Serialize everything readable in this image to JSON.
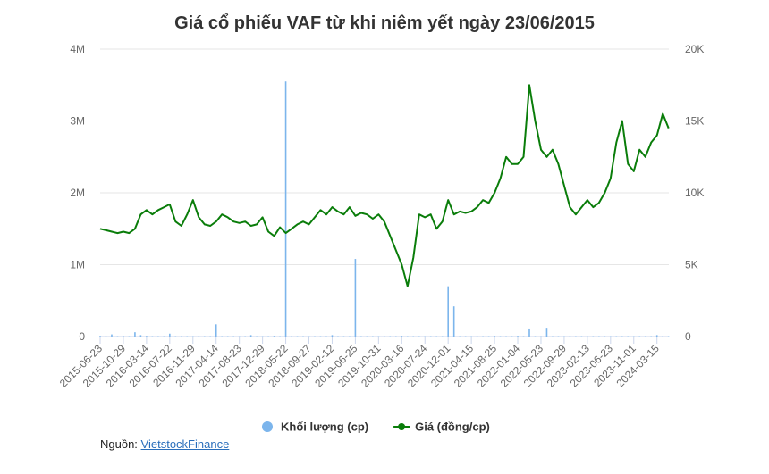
{
  "chart_data": {
    "type": "bar-line",
    "title": "Giá cổ phiếu VAF từ khi niêm yết ngày 23/06/2015",
    "categories": [
      "2015-06-23",
      null,
      null,
      null,
      "2015-10-29",
      null,
      null,
      null,
      "2016-03-14",
      null,
      null,
      null,
      "2016-07-22",
      null,
      null,
      null,
      "2016-11-29",
      null,
      null,
      null,
      "2017-04-14",
      null,
      null,
      null,
      "2017-08-23",
      null,
      null,
      null,
      "2017-12-29",
      null,
      null,
      null,
      "2018-05-22",
      null,
      null,
      null,
      "2018-09-27",
      null,
      null,
      null,
      "2019-02-12",
      null,
      null,
      null,
      "2019-06-25",
      null,
      null,
      null,
      "2019-10-31",
      null,
      null,
      null,
      "2020-03-16",
      null,
      null,
      null,
      "2020-07-24",
      null,
      null,
      null,
      "2020-12-01",
      null,
      null,
      null,
      "2021-04-15",
      null,
      null,
      null,
      "2021-08-25",
      null,
      null,
      null,
      "2022-01-04",
      null,
      null,
      null,
      "2022-05-23",
      null,
      null,
      null,
      "2022-09-29",
      null,
      null,
      null,
      "2023-02-13",
      null,
      null,
      null,
      "2023-06-23",
      null,
      null,
      null,
      "2023-11-01",
      null,
      null,
      null,
      "2024-03-15",
      null,
      null
    ],
    "series": [
      {
        "name": "Khối lượng (cp)",
        "color": "#7cb5ec",
        "type": "bar",
        "axis": "y",
        "values": [
          10000,
          5000,
          30000,
          5000,
          8000,
          5000,
          60000,
          20000,
          10000,
          5000,
          5000,
          5000,
          40000,
          5000,
          5000,
          5000,
          5000,
          5000,
          5000,
          5000,
          170000,
          5000,
          5000,
          5000,
          5000,
          5000,
          20000,
          5000,
          5000,
          5000,
          10000,
          5000,
          3550000,
          5000,
          5000,
          5000,
          5000,
          5000,
          5000,
          5000,
          20000,
          5000,
          5000,
          5000,
          1080000,
          5000,
          5000,
          5000,
          5000,
          5000,
          5000,
          5000,
          10000,
          5000,
          5000,
          5000,
          5000,
          5000,
          5000,
          5000,
          700000,
          420000,
          5000,
          5000,
          5000,
          5000,
          5000,
          5000,
          10000,
          5000,
          5000,
          5000,
          10000,
          5000,
          100000,
          5000,
          5000,
          110000,
          5000,
          5000,
          5000,
          5000,
          5000,
          5000,
          5000,
          5000,
          5000,
          5000,
          5000,
          5000,
          5000,
          5000,
          5000,
          5000,
          5000,
          5000,
          20000,
          5000,
          5000
        ]
      },
      {
        "name": "Giá (đồng/cp)",
        "color": "#0a7d0a",
        "type": "line",
        "axis": "y2",
        "values": [
          7500,
          7400,
          7300,
          7200,
          7300,
          7200,
          7500,
          8500,
          8800,
          8500,
          8800,
          9000,
          9200,
          8000,
          7700,
          8500,
          9500,
          8300,
          7800,
          7700,
          8000,
          8500,
          8300,
          8000,
          7900,
          8000,
          7700,
          7800,
          8300,
          7300,
          7000,
          7600,
          7200,
          7500,
          7800,
          8000,
          7800,
          8300,
          8800,
          8500,
          9000,
          8700,
          8500,
          9000,
          8400,
          8600,
          8500,
          8200,
          8500,
          8000,
          7000,
          6000,
          5000,
          3500,
          5500,
          8500,
          8300,
          8500,
          7500,
          8000,
          9500,
          8500,
          8700,
          8600,
          8700,
          9000,
          9500,
          9300,
          10000,
          11000,
          12500,
          12000,
          12000,
          12500,
          17500,
          15000,
          13000,
          12500,
          13000,
          12000,
          10500,
          9000,
          8500,
          9000,
          9500,
          9000,
          9300,
          10000,
          11000,
          13500,
          15000,
          12000,
          11500,
          13000,
          12500,
          13500,
          14000,
          15500,
          14500
        ]
      }
    ],
    "ylim": [
      0,
      4000000
    ],
    "yticks": [
      {
        "value": 0,
        "label": "0"
      },
      {
        "value": 1000000,
        "label": "1M"
      },
      {
        "value": 2000000,
        "label": "2M"
      },
      {
        "value": 3000000,
        "label": "3M"
      },
      {
        "value": 4000000,
        "label": "4M"
      }
    ],
    "y2lim": [
      0,
      20000
    ],
    "y2ticks": [
      {
        "value": 0,
        "label": "0"
      },
      {
        "value": 5000,
        "label": "5K"
      },
      {
        "value": 10000,
        "label": "10K"
      },
      {
        "value": 15000,
        "label": "15K"
      },
      {
        "value": 20000,
        "label": "20K"
      }
    ],
    "grid": true,
    "legend": "bottom"
  },
  "source": {
    "prefix": "Nguồn:",
    "link": "VietstockFinance"
  }
}
